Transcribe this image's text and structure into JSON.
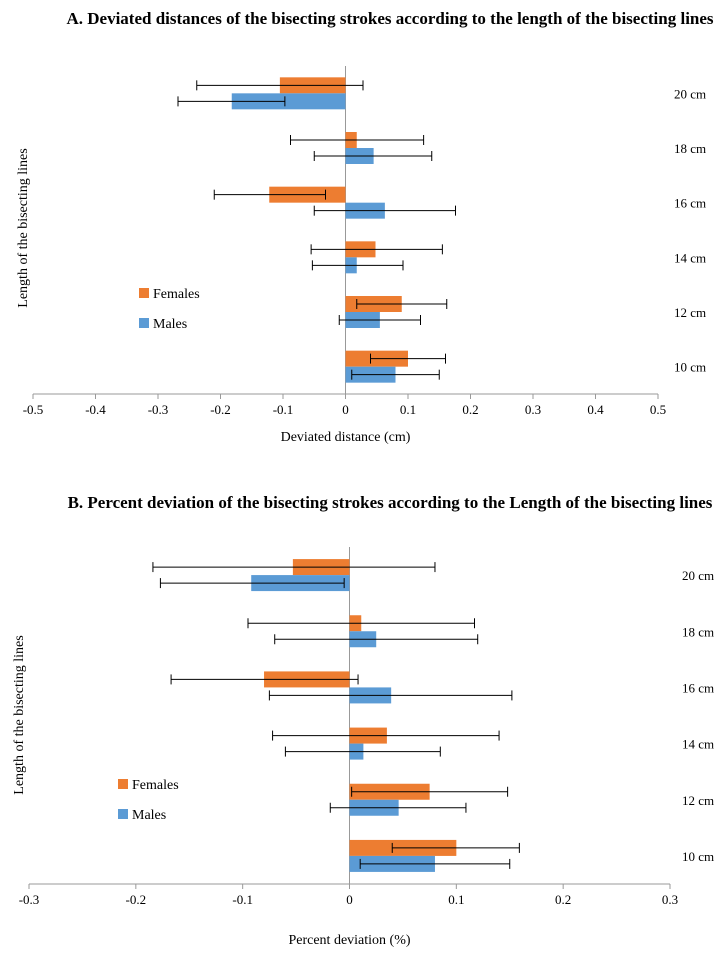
{
  "colors": {
    "females": "#ED7D31",
    "males": "#5B9BD5",
    "axis": "#999999",
    "errorbar": "#000000"
  },
  "chart_data": [
    {
      "type": "bar",
      "orientation": "horizontal",
      "title": "A. Deviated distances of the bisecting strokes according to the length of the bisecting lines",
      "xlabel": "Deviated distance (cm)",
      "ylabel": "Length of the  bisecting lines",
      "xlim": [
        -0.5,
        0.5
      ],
      "xticks": [
        "-0.5",
        "-0.4",
        "-0.3",
        "-0.2",
        "-0.1",
        "0",
        "0.1",
        "0.2",
        "0.3",
        "0.4",
        "0.5"
      ],
      "categories": [
        "10 cm",
        "12 cm",
        "14 cm",
        "16 cm",
        "18 cm",
        "20 cm"
      ],
      "legend_position": "left",
      "series": [
        {
          "name": "Females",
          "values": [
            0.1,
            0.09,
            0.048,
            -0.122,
            0.018,
            -0.105
          ],
          "error_low": [
            0.04,
            0.018,
            -0.055,
            -0.21,
            -0.088,
            -0.238
          ],
          "error_high": [
            0.16,
            0.162,
            0.155,
            -0.032,
            0.125,
            0.028
          ]
        },
        {
          "name": "Males",
          "values": [
            0.08,
            0.055,
            0.018,
            0.063,
            0.045,
            -0.182
          ],
          "error_low": [
            0.01,
            -0.01,
            -0.053,
            -0.05,
            -0.05,
            -0.268
          ],
          "error_high": [
            0.15,
            0.12,
            0.092,
            0.176,
            0.138,
            -0.097
          ]
        }
      ]
    },
    {
      "type": "bar",
      "orientation": "horizontal",
      "title": "B. Percent deviation of the bisecting strokes according to the Length of the bisecting lines",
      "xlabel": "Percent deviation (%)",
      "ylabel": "Length of the bisecting lines",
      "xlim": [
        -0.3,
        0.3
      ],
      "xticks": [
        "-0.3",
        "-0.2",
        "-0.1",
        "0",
        "0.1",
        "0.2",
        "0.3"
      ],
      "categories": [
        "10 cm",
        "12 cm",
        "14 cm",
        "16 cm",
        "18 cm",
        "20 cm"
      ],
      "legend_position": "left",
      "series": [
        {
          "name": "Females",
          "values": [
            0.1,
            0.075,
            0.035,
            -0.08,
            0.011,
            -0.053
          ],
          "error_low": [
            0.04,
            0.002,
            -0.072,
            -0.167,
            -0.095,
            -0.184
          ],
          "error_high": [
            0.159,
            0.148,
            0.14,
            0.008,
            0.117,
            0.08
          ]
        },
        {
          "name": "Males",
          "values": [
            0.08,
            0.046,
            0.013,
            0.039,
            0.025,
            -0.092
          ],
          "error_low": [
            0.01,
            -0.018,
            -0.06,
            -0.075,
            -0.07,
            -0.177
          ],
          "error_high": [
            0.15,
            0.109,
            0.085,
            0.152,
            0.12,
            -0.005
          ]
        }
      ]
    }
  ]
}
